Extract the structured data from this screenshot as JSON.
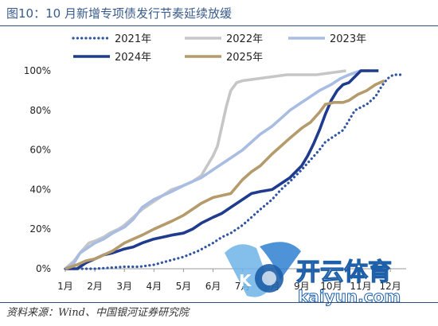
{
  "figure": {
    "title": "图10：10 月新增专项债发行节奏延续放缓",
    "source": "资料来源：Wind、中国银河证券研究院"
  },
  "watermark": {
    "brand": "开云体育",
    "domain": "kaiyun.com",
    "logo_letter": "K"
  },
  "colors": {
    "title": "#3a5b8c",
    "rule": "#2f4d7c"
  },
  "chart_data": {
    "type": "line",
    "title": "",
    "xlabel": "",
    "ylabel": "",
    "x_ticks": [
      "1月",
      "2月",
      "3月",
      "4月",
      "5月",
      "6月",
      "7月",
      "8月",
      "9月",
      "10月",
      "11月",
      "12月"
    ],
    "x_range_months": [
      1,
      12.4
    ],
    "y_ticks": [
      "0%",
      "20%",
      "40%",
      "60%",
      "80%",
      "100%"
    ],
    "ylim": [
      0,
      100
    ],
    "legend_position": "top",
    "grid": false,
    "series": [
      {
        "name": "2021年",
        "color": "#2f55a4",
        "style": "dotted",
        "points": [
          [
            1.0,
            0
          ],
          [
            1.5,
            0
          ],
          [
            2.0,
            0
          ],
          [
            2.5,
            0.5
          ],
          [
            3.0,
            1
          ],
          [
            3.5,
            1
          ],
          [
            4.0,
            2
          ],
          [
            4.5,
            4
          ],
          [
            5.0,
            6
          ],
          [
            5.5,
            9
          ],
          [
            6.0,
            13
          ],
          [
            6.3,
            16
          ],
          [
            6.6,
            18
          ],
          [
            7.0,
            22
          ],
          [
            7.3,
            26
          ],
          [
            7.6,
            30
          ],
          [
            8.0,
            35
          ],
          [
            8.3,
            40
          ],
          [
            8.6,
            44
          ],
          [
            9.0,
            50
          ],
          [
            9.3,
            55
          ],
          [
            9.6,
            60
          ],
          [
            9.8,
            64
          ],
          [
            10.1,
            67
          ],
          [
            10.4,
            70
          ],
          [
            10.6,
            75
          ],
          [
            10.8,
            80
          ],
          [
            11.2,
            83
          ],
          [
            11.5,
            87
          ],
          [
            11.7,
            92
          ],
          [
            11.9,
            96
          ],
          [
            12.1,
            98
          ],
          [
            12.4,
            98
          ]
        ]
      },
      {
        "name": "2022年",
        "color": "#c6c6c6",
        "style": "solid",
        "points": [
          [
            1.0,
            0
          ],
          [
            1.3,
            4
          ],
          [
            1.5,
            8
          ],
          [
            1.8,
            13
          ],
          [
            2.0,
            14
          ],
          [
            2.3,
            16
          ],
          [
            2.5,
            18
          ],
          [
            2.8,
            20
          ],
          [
            3.0,
            22
          ],
          [
            3.3,
            26
          ],
          [
            3.6,
            30
          ],
          [
            4.0,
            34
          ],
          [
            4.3,
            37
          ],
          [
            4.6,
            40
          ],
          [
            5.0,
            42
          ],
          [
            5.3,
            44
          ],
          [
            5.6,
            47
          ],
          [
            5.8,
            52
          ],
          [
            6.0,
            57
          ],
          [
            6.15,
            62
          ],
          [
            6.3,
            72
          ],
          [
            6.45,
            82
          ],
          [
            6.6,
            90
          ],
          [
            6.8,
            94
          ],
          [
            7.0,
            95
          ],
          [
            7.5,
            96
          ],
          [
            8.0,
            97
          ],
          [
            8.5,
            98
          ],
          [
            9.0,
            98
          ],
          [
            9.5,
            98
          ],
          [
            10.0,
            99
          ],
          [
            10.5,
            100
          ]
        ]
      },
      {
        "name": "2023年",
        "color": "#a9bde3",
        "style": "solid",
        "points": [
          [
            1.0,
            0
          ],
          [
            1.3,
            3
          ],
          [
            1.5,
            8
          ],
          [
            1.8,
            11
          ],
          [
            2.0,
            13
          ],
          [
            2.3,
            15
          ],
          [
            2.6,
            18
          ],
          [
            3.0,
            21
          ],
          [
            3.3,
            25
          ],
          [
            3.6,
            31
          ],
          [
            4.0,
            35
          ],
          [
            4.3,
            37
          ],
          [
            4.6,
            39
          ],
          [
            5.0,
            42
          ],
          [
            5.3,
            44
          ],
          [
            5.6,
            46
          ],
          [
            6.0,
            50
          ],
          [
            6.3,
            53
          ],
          [
            6.6,
            56
          ],
          [
            7.0,
            60
          ],
          [
            7.3,
            64
          ],
          [
            7.6,
            68
          ],
          [
            8.0,
            72
          ],
          [
            8.3,
            76
          ],
          [
            8.6,
            80
          ],
          [
            9.0,
            84
          ],
          [
            9.3,
            87
          ],
          [
            9.6,
            90
          ],
          [
            10.0,
            93
          ],
          [
            10.3,
            96
          ],
          [
            10.6,
            98
          ],
          [
            11.0,
            100
          ],
          [
            11.3,
            100
          ]
        ]
      },
      {
        "name": "2024年",
        "color": "#1f3b8e",
        "style": "solid",
        "points": [
          [
            1.0,
            0
          ],
          [
            1.4,
            0
          ],
          [
            1.7,
            3
          ],
          [
            2.0,
            5
          ],
          [
            2.3,
            7
          ],
          [
            2.6,
            8
          ],
          [
            3.0,
            10
          ],
          [
            3.3,
            11
          ],
          [
            3.6,
            13
          ],
          [
            4.0,
            15
          ],
          [
            4.3,
            16
          ],
          [
            4.6,
            17
          ],
          [
            5.0,
            18
          ],
          [
            5.3,
            20
          ],
          [
            5.6,
            23
          ],
          [
            6.0,
            26
          ],
          [
            6.3,
            28
          ],
          [
            6.6,
            31
          ],
          [
            7.0,
            35
          ],
          [
            7.3,
            38
          ],
          [
            7.6,
            39
          ],
          [
            8.0,
            40
          ],
          [
            8.3,
            43
          ],
          [
            8.6,
            46
          ],
          [
            9.0,
            52
          ],
          [
            9.2,
            57
          ],
          [
            9.4,
            63
          ],
          [
            9.6,
            70
          ],
          [
            9.8,
            78
          ],
          [
            10.0,
            85
          ],
          [
            10.2,
            90
          ],
          [
            10.4,
            93
          ],
          [
            10.6,
            94
          ],
          [
            10.8,
            97
          ],
          [
            11.0,
            100
          ],
          [
            11.3,
            100
          ],
          [
            11.6,
            100
          ]
        ]
      },
      {
        "name": "2025年",
        "color": "#b59a6c",
        "style": "solid",
        "points": [
          [
            1.0,
            0
          ],
          [
            1.4,
            2
          ],
          [
            1.7,
            4
          ],
          [
            2.0,
            5
          ],
          [
            2.3,
            7
          ],
          [
            2.6,
            9
          ],
          [
            3.0,
            13
          ],
          [
            3.3,
            15
          ],
          [
            3.6,
            17
          ],
          [
            4.0,
            20
          ],
          [
            4.3,
            22
          ],
          [
            4.6,
            24
          ],
          [
            5.0,
            27
          ],
          [
            5.3,
            30
          ],
          [
            5.6,
            33
          ],
          [
            6.0,
            36
          ],
          [
            6.3,
            37
          ],
          [
            6.6,
            38
          ],
          [
            7.0,
            45
          ],
          [
            7.3,
            49
          ],
          [
            7.6,
            52
          ],
          [
            8.0,
            58
          ],
          [
            8.3,
            62
          ],
          [
            8.6,
            66
          ],
          [
            9.0,
            71
          ],
          [
            9.3,
            74
          ],
          [
            9.6,
            79
          ],
          [
            9.8,
            83
          ],
          [
            10.1,
            84
          ],
          [
            10.4,
            84
          ],
          [
            10.6,
            85
          ],
          [
            10.9,
            88
          ],
          [
            11.2,
            90
          ],
          [
            11.5,
            93
          ],
          [
            11.8,
            95
          ]
        ]
      }
    ]
  }
}
